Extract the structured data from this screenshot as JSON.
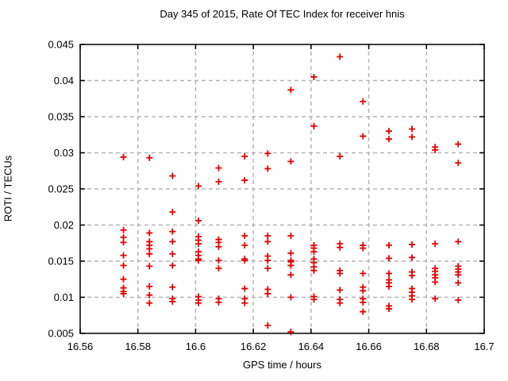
{
  "chart_data": {
    "type": "scatter",
    "title": "Day 345 of 2015, Rate Of TEC Index for receiver hnis",
    "xlabel": "GPS time / hours",
    "ylabel": "ROTI / TECUs",
    "xlim": [
      16.56,
      16.7
    ],
    "ylim": [
      0.005,
      0.045
    ],
    "xtick_values": [
      16.56,
      16.58,
      16.6,
      16.62,
      16.64,
      16.66,
      16.68,
      16.7
    ],
    "xtick_labels": [
      "16.56",
      "16.58",
      "16.6",
      "16.62",
      "16.64",
      "16.66",
      "16.68",
      "16.7"
    ],
    "ytick_values": [
      0.005,
      0.01,
      0.015,
      0.02,
      0.025,
      0.03,
      0.035,
      0.04,
      0.045
    ],
    "ytick_labels": [
      "0.005",
      "0.01",
      "0.015",
      "0.02",
      "0.025",
      "0.03",
      "0.035",
      "0.04",
      "0.045"
    ],
    "grid": true,
    "legend_position": "none",
    "marker": "plus",
    "marker_color": "#e60000",
    "grid_color": "#b5b5b5",
    "border_color": "#000000",
    "background_color": "#ffffff",
    "points": [
      [
        16.575,
        0.0294
      ],
      [
        16.575,
        0.0193
      ],
      [
        16.575,
        0.0183
      ],
      [
        16.575,
        0.0176
      ],
      [
        16.575,
        0.0158
      ],
      [
        16.575,
        0.0144
      ],
      [
        16.575,
        0.0125
      ],
      [
        16.575,
        0.0113
      ],
      [
        16.575,
        0.0108
      ],
      [
        16.575,
        0.0105
      ],
      [
        16.584,
        0.0293
      ],
      [
        16.584,
        0.0189
      ],
      [
        16.584,
        0.0177
      ],
      [
        16.584,
        0.0172
      ],
      [
        16.584,
        0.0167
      ],
      [
        16.584,
        0.016
      ],
      [
        16.584,
        0.0143
      ],
      [
        16.584,
        0.0115
      ],
      [
        16.584,
        0.0103
      ],
      [
        16.584,
        0.0092
      ],
      [
        16.592,
        0.0268
      ],
      [
        16.592,
        0.0218
      ],
      [
        16.592,
        0.0191
      ],
      [
        16.592,
        0.0177
      ],
      [
        16.592,
        0.016
      ],
      [
        16.592,
        0.0144
      ],
      [
        16.592,
        0.0114
      ],
      [
        16.592,
        0.0098
      ],
      [
        16.592,
        0.0094
      ],
      [
        16.601,
        0.0254
      ],
      [
        16.601,
        0.0206
      ],
      [
        16.601,
        0.0184
      ],
      [
        16.601,
        0.0179
      ],
      [
        16.601,
        0.0174
      ],
      [
        16.601,
        0.0163
      ],
      [
        16.601,
        0.0158
      ],
      [
        16.601,
        0.0153
      ],
      [
        16.601,
        0.0151
      ],
      [
        16.601,
        0.0101
      ],
      [
        16.601,
        0.0096
      ],
      [
        16.601,
        0.0092
      ],
      [
        16.608,
        0.0279
      ],
      [
        16.608,
        0.026
      ],
      [
        16.608,
        0.018
      ],
      [
        16.608,
        0.0176
      ],
      [
        16.608,
        0.017
      ],
      [
        16.608,
        0.0151
      ],
      [
        16.608,
        0.014
      ],
      [
        16.608,
        0.0098
      ],
      [
        16.608,
        0.0093
      ],
      [
        16.617,
        0.0295
      ],
      [
        16.617,
        0.0262
      ],
      [
        16.617,
        0.0185
      ],
      [
        16.617,
        0.0172
      ],
      [
        16.617,
        0.0153
      ],
      [
        16.617,
        0.0151
      ],
      [
        16.617,
        0.0112
      ],
      [
        16.617,
        0.0098
      ],
      [
        16.617,
        0.0092
      ],
      [
        16.625,
        0.0299
      ],
      [
        16.625,
        0.0278
      ],
      [
        16.625,
        0.0185
      ],
      [
        16.625,
        0.0177
      ],
      [
        16.625,
        0.0157
      ],
      [
        16.625,
        0.0151
      ],
      [
        16.625,
        0.014
      ],
      [
        16.625,
        0.0111
      ],
      [
        16.625,
        0.0105
      ],
      [
        16.625,
        0.0061
      ],
      [
        16.633,
        0.0387
      ],
      [
        16.633,
        0.0288
      ],
      [
        16.633,
        0.0185
      ],
      [
        16.633,
        0.0161
      ],
      [
        16.633,
        0.0151
      ],
      [
        16.633,
        0.0149
      ],
      [
        16.633,
        0.0144
      ],
      [
        16.633,
        0.0131
      ],
      [
        16.633,
        0.01
      ],
      [
        16.633,
        0.0052
      ],
      [
        16.641,
        0.0405
      ],
      [
        16.641,
        0.0337
      ],
      [
        16.641,
        0.0172
      ],
      [
        16.641,
        0.0168
      ],
      [
        16.641,
        0.0163
      ],
      [
        16.641,
        0.0153
      ],
      [
        16.641,
        0.0148
      ],
      [
        16.641,
        0.0142
      ],
      [
        16.641,
        0.0137
      ],
      [
        16.641,
        0.0101
      ],
      [
        16.641,
        0.0097
      ],
      [
        16.65,
        0.0433
      ],
      [
        16.65,
        0.0295
      ],
      [
        16.65,
        0.0174
      ],
      [
        16.65,
        0.0169
      ],
      [
        16.65,
        0.0137
      ],
      [
        16.65,
        0.0133
      ],
      [
        16.65,
        0.011
      ],
      [
        16.65,
        0.0097
      ],
      [
        16.65,
        0.0092
      ],
      [
        16.658,
        0.0371
      ],
      [
        16.658,
        0.0323
      ],
      [
        16.658,
        0.0172
      ],
      [
        16.658,
        0.0168
      ],
      [
        16.658,
        0.0133
      ],
      [
        16.658,
        0.0114
      ],
      [
        16.658,
        0.0109
      ],
      [
        16.658,
        0.0098
      ],
      [
        16.658,
        0.0093
      ],
      [
        16.658,
        0.008
      ],
      [
        16.667,
        0.033
      ],
      [
        16.667,
        0.0319
      ],
      [
        16.667,
        0.0172
      ],
      [
        16.667,
        0.0154
      ],
      [
        16.667,
        0.0133
      ],
      [
        16.667,
        0.0124
      ],
      [
        16.667,
        0.012
      ],
      [
        16.667,
        0.0115
      ],
      [
        16.667,
        0.0088
      ],
      [
        16.667,
        0.0084
      ],
      [
        16.675,
        0.0333
      ],
      [
        16.675,
        0.0322
      ],
      [
        16.675,
        0.0173
      ],
      [
        16.675,
        0.0155
      ],
      [
        16.675,
        0.0135
      ],
      [
        16.675,
        0.013
      ],
      [
        16.675,
        0.0112
      ],
      [
        16.675,
        0.0107
      ],
      [
        16.675,
        0.0102
      ],
      [
        16.675,
        0.0097
      ],
      [
        16.683,
        0.0308
      ],
      [
        16.683,
        0.0304
      ],
      [
        16.683,
        0.0174
      ],
      [
        16.683,
        0.014
      ],
      [
        16.683,
        0.0136
      ],
      [
        16.683,
        0.0131
      ],
      [
        16.683,
        0.0127
      ],
      [
        16.683,
        0.0121
      ],
      [
        16.683,
        0.0098
      ],
      [
        16.691,
        0.0312
      ],
      [
        16.691,
        0.0286
      ],
      [
        16.691,
        0.0177
      ],
      [
        16.691,
        0.0143
      ],
      [
        16.691,
        0.0139
      ],
      [
        16.691,
        0.0135
      ],
      [
        16.691,
        0.0131
      ],
      [
        16.691,
        0.012
      ],
      [
        16.691,
        0.0096
      ]
    ]
  }
}
